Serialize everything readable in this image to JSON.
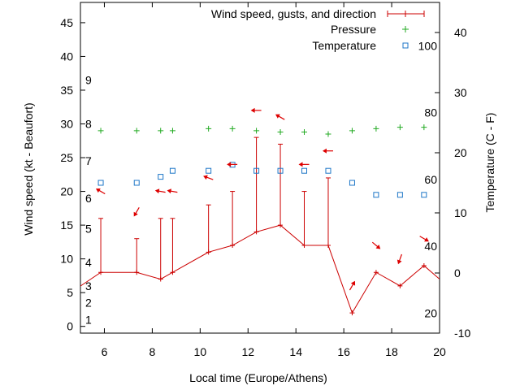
{
  "chart_data": {
    "type": "line",
    "xlabel": "Local time (Europe/Athens)",
    "ylabel_left": "Wind speed (kt - Beaufort)",
    "ylabel_right": "Temperature (C - F)",
    "xlim": [
      5,
      20
    ],
    "ylim_left": [
      -1,
      48
    ],
    "ylim_right": [
      -10,
      45
    ],
    "xticks": [
      6,
      8,
      10,
      12,
      14,
      16,
      18,
      20
    ],
    "yticks_left": [
      0,
      5,
      10,
      15,
      20,
      25,
      30,
      35,
      40,
      45
    ],
    "yticks_right": [
      -10,
      0,
      10,
      20,
      30,
      40
    ],
    "beaufort_labels": [
      {
        "label": "1",
        "value": 1
      },
      {
        "label": "2",
        "value": 3.5
      },
      {
        "label": "3",
        "value": 6
      },
      {
        "label": "4",
        "value": 9.5
      },
      {
        "label": "5",
        "value": 14.5
      },
      {
        "label": "6",
        "value": 19
      },
      {
        "label": "7",
        "value": 24.5
      },
      {
        "label": "8",
        "value": 30
      },
      {
        "label": "9",
        "value": 36.5
      }
    ],
    "fahrenheit_labels": [
      {
        "label": "20",
        "value": 20
      },
      {
        "label": "40",
        "value": 40
      },
      {
        "label": "60",
        "value": 60
      },
      {
        "label": "80",
        "value": 80
      },
      {
        "label": "100",
        "value": 100
      }
    ],
    "legend": {
      "placement": "top-right",
      "entries": [
        "Wind speed, gusts, and direction",
        "Pressure",
        "Temperature"
      ]
    },
    "colors": {
      "wind": "#cc0000",
      "pressure": "#22aa22",
      "temperature": "#1f77c8",
      "arrow": "#dd0000"
    },
    "wind_series": {
      "name": "Wind speed, gusts, and direction",
      "x": [
        4.8,
        5.85,
        7.35,
        8.35,
        8.85,
        10.35,
        11.35,
        12.35,
        13.35,
        14.35,
        15.35,
        16.35,
        17.35,
        18.35,
        19.35,
        20
      ],
      "speed": [
        5.5,
        8,
        8,
        7,
        8,
        11,
        12,
        14,
        15,
        12,
        12,
        2,
        8,
        6,
        9,
        7
      ],
      "gust": [
        null,
        16,
        13,
        16,
        16,
        18,
        20,
        28,
        27,
        20,
        22,
        null,
        null,
        null,
        null,
        null
      ]
    },
    "wind_arrows": {
      "x": [
        5.85,
        7.35,
        8.35,
        8.85,
        10.35,
        11.35,
        12.35,
        13.35,
        14.35,
        15.35,
        16.35,
        17.35,
        18.35,
        19.35
      ],
      "y": [
        20,
        17,
        20,
        20,
        22,
        24,
        32,
        31,
        24,
        26,
        6,
        12,
        10,
        13
      ],
      "direction_deg": [
        120,
        30,
        100,
        100,
        110,
        90,
        90,
        120,
        90,
        90,
        210,
        310,
        20,
        300
      ]
    },
    "pressure_series": {
      "name": "Pressure",
      "x": [
        5.85,
        7.35,
        8.35,
        8.85,
        10.35,
        11.35,
        12.35,
        13.35,
        14.35,
        15.35,
        16.35,
        17.35,
        18.35,
        19.35
      ],
      "y": [
        29,
        29,
        29,
        29,
        29.3,
        29.3,
        29,
        28.8,
        28.8,
        28.5,
        29,
        29.3,
        29.5,
        29.5
      ]
    },
    "temperature_series": {
      "name": "Temperature",
      "x": [
        5.85,
        7.35,
        8.35,
        8.85,
        10.35,
        11.35,
        12.35,
        13.35,
        14.35,
        15.35,
        16.35,
        17.35,
        18.35,
        19.35
      ],
      "y": [
        15,
        15,
        16,
        17,
        17,
        18,
        17,
        17,
        17,
        17,
        15,
        13,
        13,
        13
      ]
    }
  }
}
